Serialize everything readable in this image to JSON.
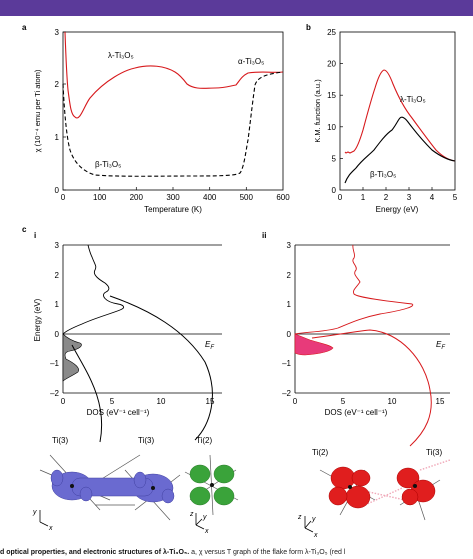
{
  "colors": {
    "top_bar": "#5b3a9a",
    "red": "#d7191c",
    "black": "#000000",
    "fill_dos_ii": "#e83a7a",
    "fill_dos_i": "#888888",
    "orbital_blue": "#6a6ad0",
    "orbital_green": "#3aa33a",
    "orbital_red": "#e01e1e"
  },
  "panels": {
    "a": {
      "label": "a",
      "ylabel": "χ (10⁻⁴ emu per Ti atom)",
      "xlabel": "Temperature (K)",
      "curve_labels": {
        "lambda": "λ-Ti₃O₅",
        "alpha": "α-Ti₃O₅",
        "beta": "β-Ti₃O₅"
      }
    },
    "b": {
      "label": "b",
      "ylabel": "K.M. function (a.u.)",
      "xlabel": "Energy (eV)",
      "curve_labels": {
        "lambda": "λ-Ti₃O₅",
        "beta": "β-Ti₃O₅"
      }
    },
    "c": {
      "label": "c",
      "sub_i": "i",
      "sub_ii": "ii",
      "ylabel": "Energy (eV)",
      "xlabel": "DOS (eV⁻¹ cell⁻¹)",
      "ef": "E",
      "ef_sub": "F"
    }
  },
  "orbitals": {
    "left_1": "Ti(3)",
    "left_2": "Ti(3)",
    "mid": "Ti(2)",
    "right_1": "Ti(2)",
    "right_2": "Ti(3)",
    "axis_y": "y",
    "axis_x": "x",
    "axis_z": "z"
  },
  "caption": {
    "bold": "d optical properties, and electronic structures of λ-Ti₃O₅.",
    "rest": " a, χ versus T graph of the flake form λ-Ti₃O₅ (red l"
  },
  "chart_data": [
    {
      "type": "line",
      "panel": "a",
      "xlabel": "Temperature (K)",
      "ylabel": "χ (10⁻⁴ emu per Ti atom)",
      "xlim": [
        0,
        600
      ],
      "ylim": [
        0,
        3
      ],
      "xticks": [
        0,
        100,
        200,
        300,
        400,
        500,
        600
      ],
      "yticks": [
        0,
        1,
        2,
        3
      ],
      "series": [
        {
          "name": "λ-Ti₃O₅",
          "style": "solid red",
          "x": [
            5,
            10,
            20,
            30,
            40,
            60,
            100,
            150,
            200,
            250,
            300,
            340,
            360,
            400,
            430,
            460,
            480,
            520,
            560,
            600
          ],
          "y": [
            3.0,
            2.3,
            1.6,
            1.4,
            1.37,
            1.55,
            2.05,
            2.33,
            2.4,
            2.36,
            2.2,
            2.0,
            1.9,
            1.88,
            1.88,
            1.9,
            2.15,
            2.22,
            2.22,
            2.22
          ]
        },
        {
          "name": "β-Ti₃O₅",
          "style": "dashed black",
          "x": [
            0,
            10,
            20,
            40,
            80,
            150,
            250,
            350,
            440,
            460,
            470,
            480,
            500,
            530,
            600
          ],
          "y": [
            2.0,
            1.3,
            0.8,
            0.55,
            0.38,
            0.3,
            0.3,
            0.3,
            0.33,
            0.6,
            1.2,
            1.8,
            2.1,
            2.2,
            2.22
          ]
        }
      ]
    },
    {
      "type": "line",
      "panel": "b",
      "xlabel": "Energy (eV)",
      "ylabel": "K.M. function (a.u.)",
      "xlim": [
        0,
        5
      ],
      "ylim": [
        0,
        25
      ],
      "xticks": [
        0,
        1,
        2,
        3,
        4,
        5
      ],
      "yticks": [
        0,
        5,
        10,
        15,
        20,
        25
      ],
      "series": [
        {
          "name": "λ-Ti₃O₅",
          "style": "solid red",
          "x": [
            0.2,
            0.4,
            0.6,
            0.8,
            1.0,
            1.2,
            1.4,
            1.6,
            1.8,
            2.0,
            2.2,
            2.5,
            3.0,
            3.5,
            4.0,
            4.5,
            5.0
          ],
          "y": [
            6.0,
            6.0,
            6.3,
            7.5,
            9.5,
            12.5,
            15.5,
            18.0,
            19.0,
            18.5,
            17.0,
            14.5,
            11.5,
            8.5,
            6.2,
            4.8,
            4.5
          ]
        },
        {
          "name": "β-Ti₃O₅",
          "style": "solid black",
          "x": [
            0.2,
            0.4,
            0.6,
            0.8,
            1.0,
            1.2,
            1.4,
            1.6,
            1.8,
            2.0,
            2.2,
            2.4,
            2.6,
            3.0,
            3.5,
            4.0,
            4.5,
            5.0
          ],
          "y": [
            1.0,
            2.0,
            3.2,
            4.0,
            4.8,
            5.5,
            6.3,
            7.2,
            8.2,
            9.3,
            10.5,
            11.3,
            11.0,
            9.5,
            7.3,
            5.6,
            4.8,
            4.5
          ]
        }
      ]
    },
    {
      "type": "line",
      "panel": "c-i",
      "xlabel": "DOS (eV⁻¹ cell⁻¹)",
      "ylabel": "Energy (eV)",
      "xlim": [
        0,
        16
      ],
      "ylim": [
        -2,
        3
      ],
      "xticks": [
        0,
        5,
        10,
        15
      ],
      "yticks": [
        -2,
        -1,
        0,
        1,
        2,
        3
      ],
      "series": [
        {
          "name": "",
          "style": "solid black",
          "x": [
            0,
            0,
            0,
            0,
            0.5,
            1.5,
            2.0,
            1.0,
            0.2,
            0.2,
            1.5,
            2.0,
            0.8,
            0,
            0
          ],
          "y": [
            -2,
            -1.9,
            -1.6,
            -1.5,
            -1.4,
            -1.3,
            -1.2,
            -1.1,
            -0.9,
            -0.6,
            -0.4,
            -0.25,
            -0.1,
            0,
            0
          ]
        }
      ]
    },
    {
      "type": "line",
      "panel": "c-ii",
      "xlabel": "DOS (eV⁻¹ cell⁻¹)",
      "ylabel": "Energy (eV)",
      "xlim": [
        0,
        16
      ],
      "ylim": [
        -2,
        3
      ],
      "xticks": [
        0,
        5,
        10,
        15
      ],
      "yticks": [
        -2,
        -1,
        0,
        1,
        2,
        3
      ],
      "series": [
        {
          "name": "",
          "style": "solid red",
          "x": [
            0,
            0,
            0.5,
            2.0,
            3.5,
            4.0,
            3.0,
            1.0,
            0.2,
            0
          ],
          "y": [
            -2,
            -0.7,
            -0.65,
            -0.6,
            -0.55,
            -0.45,
            -0.3,
            -0.15,
            -0.05,
            0
          ]
        }
      ]
    }
  ]
}
